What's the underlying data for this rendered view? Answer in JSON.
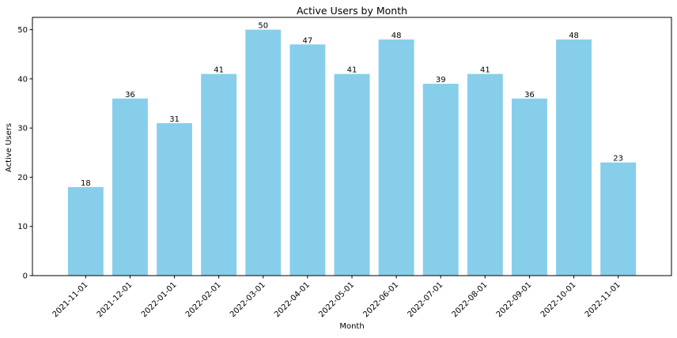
{
  "chart_data": {
    "type": "bar",
    "title": "Active Users by Month",
    "xlabel": "Month",
    "ylabel": "Active Users",
    "categories": [
      "2021-11-01",
      "2021-12-01",
      "2022-01-01",
      "2022-02-01",
      "2022-03-01",
      "2022-04-01",
      "2022-05-01",
      "2022-06-01",
      "2022-07-01",
      "2022-08-01",
      "2022-09-01",
      "2022-10-01",
      "2022-11-01"
    ],
    "values": [
      18,
      36,
      31,
      41,
      50,
      47,
      41,
      48,
      39,
      41,
      36,
      48,
      23
    ],
    "ylim": [
      0,
      52.5
    ],
    "yticks": [
      0,
      10,
      20,
      30,
      40,
      50
    ],
    "bar_color": "#87ceeb",
    "grid": false,
    "legend": "none",
    "data_labels": true
  }
}
